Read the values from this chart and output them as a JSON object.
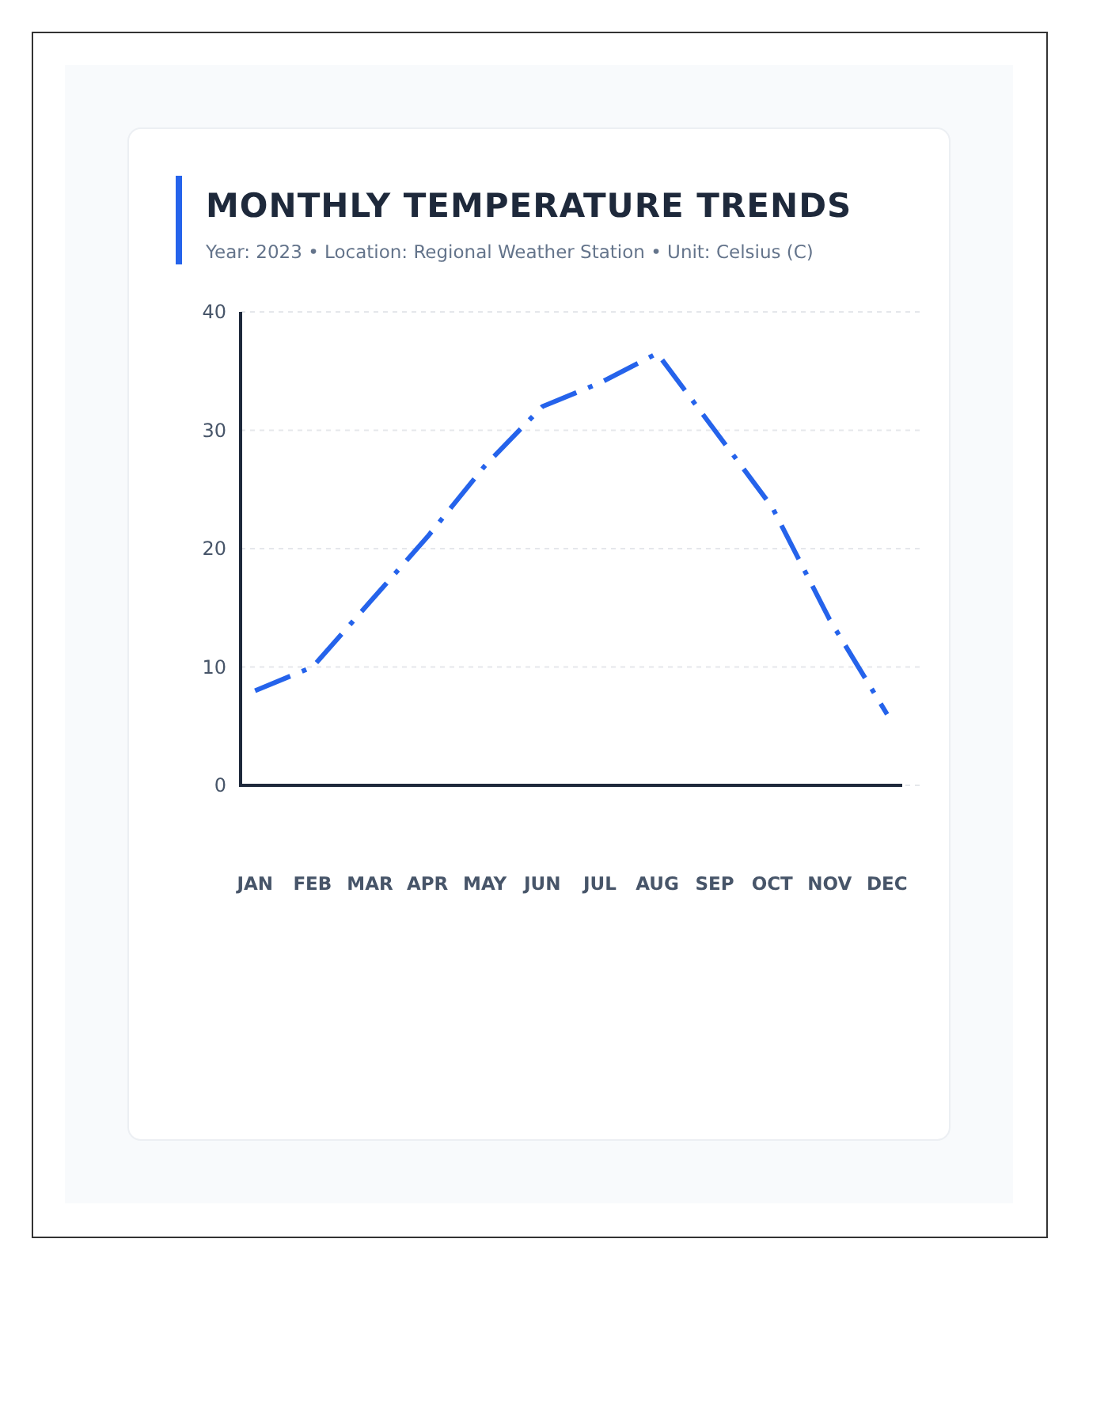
{
  "chart_data": {
    "type": "line",
    "title": "MONTHLY TEMPERATURE TRENDS",
    "subtitle": "Year: 2023 • Location: Regional Weather Station • Unit: Celsius (C)",
    "categories": [
      "JAN",
      "FEB",
      "MAR",
      "APR",
      "MAY",
      "JUN",
      "JUL",
      "AUG",
      "SEP",
      "OCT",
      "NOV",
      "DEC"
    ],
    "series": [
      {
        "color": "#2563eb",
        "values": [
          8,
          10,
          15.5,
          21,
          27,
          32,
          34,
          36.5,
          30,
          23.5,
          14,
          6
        ]
      }
    ],
    "ylim": [
      0,
      40
    ],
    "yticks": [
      0,
      10,
      20,
      30,
      40
    ],
    "grid": "y",
    "marker": "none",
    "line_style": "dashed"
  }
}
